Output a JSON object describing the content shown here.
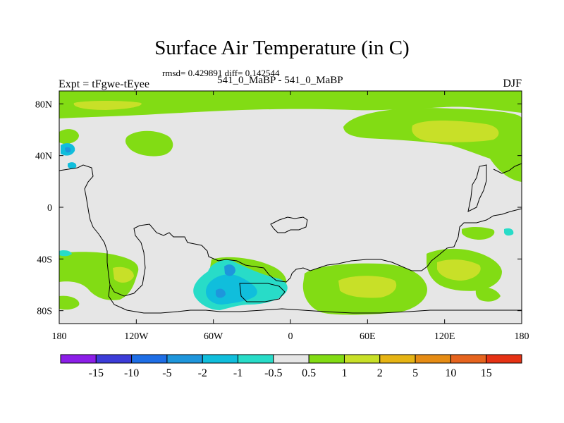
{
  "title": "Surface Air Temperature (in C)",
  "stats_text": "rmsd= 0.429891 diff= 0.142544",
  "left_label": "Expt = tFgwe-tEyee",
  "center_label": "541_0_MaBP - 541_0_MaBP",
  "right_label": "DJF",
  "axes": {
    "lon_ticks": [
      {
        "lon": -180,
        "label": "180"
      },
      {
        "lon": -120,
        "label": "120W"
      },
      {
        "lon": -60,
        "label": "60W"
      },
      {
        "lon": 0,
        "label": "0"
      },
      {
        "lon": 60,
        "label": "60E"
      },
      {
        "lon": 120,
        "label": "120E"
      },
      {
        "lon": 180,
        "label": "180"
      }
    ],
    "lat_ticks": [
      {
        "lat": 80,
        "label": "80N"
      },
      {
        "lat": 40,
        "label": "40N"
      },
      {
        "lat": 0,
        "label": "0"
      },
      {
        "lat": -40,
        "label": "40S"
      },
      {
        "lat": -80,
        "label": "80S"
      }
    ],
    "lon_range": [
      -180,
      180
    ],
    "lat_range": [
      -90,
      90
    ]
  },
  "colorbar": {
    "colors": [
      "#8c1ee8",
      "#3c3cd8",
      "#1e6ee6",
      "#1e96dc",
      "#10bedc",
      "#28dcc8",
      "#e6e6e6",
      "#82dc14",
      "#c8e028",
      "#e6b414",
      "#e68c14",
      "#e6641e",
      "#e63214"
    ],
    "labels": [
      "-15",
      "-10",
      "-5",
      "-2",
      "-1",
      "-0.5",
      "0.5",
      "1",
      "2",
      "5",
      "10",
      "15"
    ]
  }
}
